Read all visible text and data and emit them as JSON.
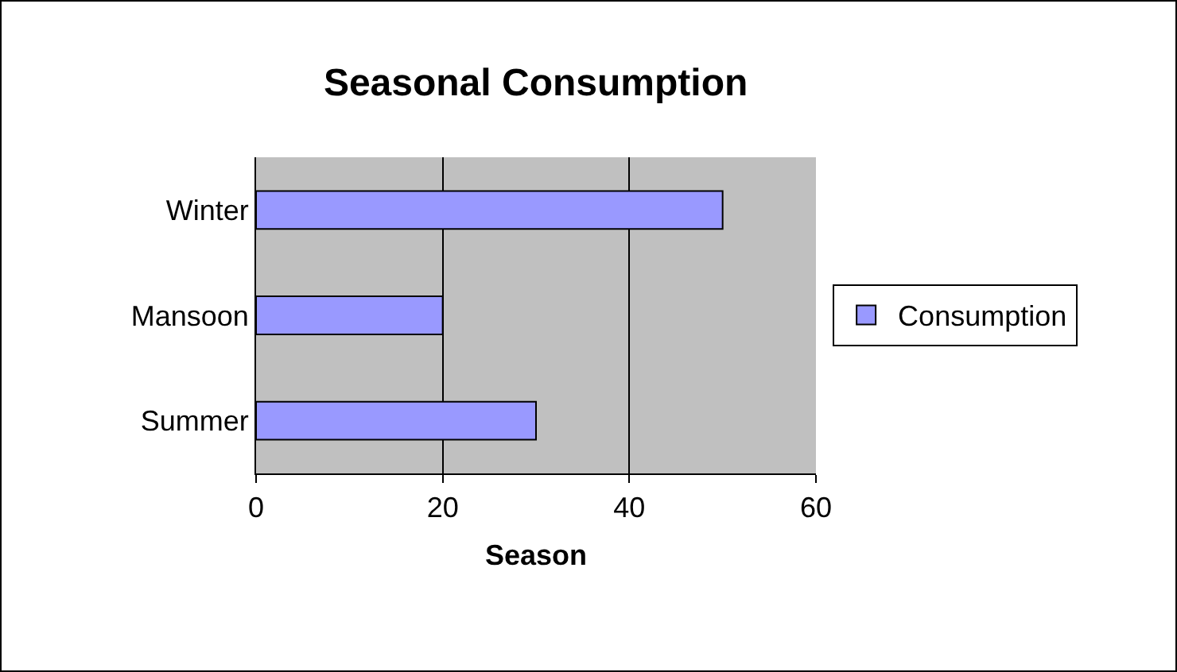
{
  "chart_data": {
    "type": "bar",
    "title": "Seasonal Consumption",
    "xlabel": "Season",
    "orientation": "horizontal",
    "categories": [
      "Winter",
      "Mansoon",
      "Summer"
    ],
    "series": [
      {
        "name": "Consumption",
        "color": "#9999ff",
        "values": [
          50,
          20,
          30
        ]
      }
    ],
    "xlim": [
      0,
      60
    ],
    "xticks": [
      0,
      20,
      40,
      60
    ],
    "grid": "x",
    "legend": "right"
  }
}
